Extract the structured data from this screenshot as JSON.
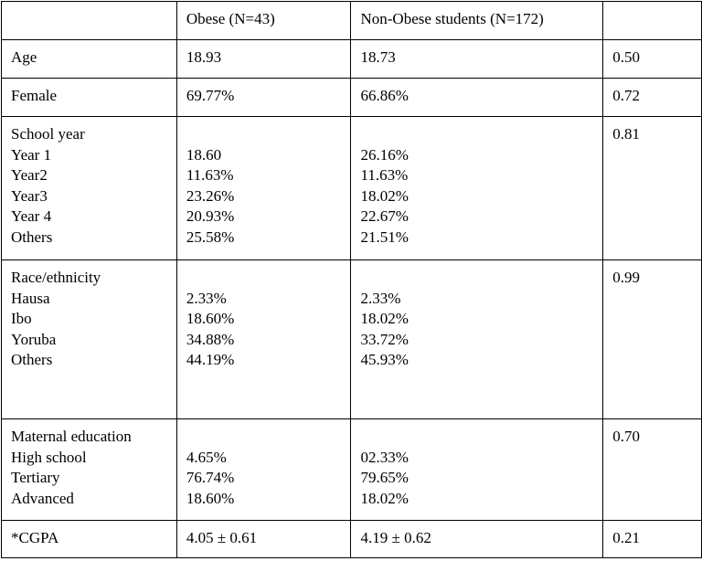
{
  "table": {
    "header": {
      "col1": "",
      "col2": "Obese (N=43)",
      "col3": "Non-Obese students (N=172)",
      "col4": ""
    },
    "age": {
      "label": "Age",
      "obese": "18.93",
      "non_obese": "18.73",
      "p": "0.50"
    },
    "female": {
      "label": "Female",
      "obese": "69.77%",
      "non_obese": "66.86%",
      "p": "0.72"
    },
    "school_year": {
      "label": "School year",
      "p": "0.81",
      "rows": [
        {
          "label": "Year 1",
          "obese": "18.60",
          "non_obese": "26.16%"
        },
        {
          "label": "Year2",
          "obese": "11.63%",
          "non_obese": "11.63%"
        },
        {
          "label": "Year3",
          "obese": "23.26%",
          "non_obese": "18.02%"
        },
        {
          "label": "Year 4",
          "obese": "20.93%",
          "non_obese": "22.67%"
        },
        {
          "label": "Others",
          "obese": "25.58%",
          "non_obese": "21.51%"
        }
      ]
    },
    "race": {
      "label": "Race/ethnicity",
      "p": "0.99",
      "rows": [
        {
          "label": "Hausa",
          "obese": "2.33%",
          "non_obese": "2.33%"
        },
        {
          "label": "Ibo",
          "obese": "18.60%",
          "non_obese": "18.02%"
        },
        {
          "label": "Yoruba",
          "obese": "34.88%",
          "non_obese": "33.72%"
        },
        {
          "label": "Others",
          "obese": "44.19%",
          "non_obese": "45.93%"
        }
      ]
    },
    "maternal": {
      "label": "Maternal education",
      "p": "0.70",
      "rows": [
        {
          "label": "High school",
          "obese": "4.65%",
          "non_obese": "02.33%"
        },
        {
          "label": "Tertiary",
          "obese": "76.74%",
          "non_obese": "79.65%"
        },
        {
          "label": "Advanced",
          "obese": "18.60%",
          "non_obese": "18.02%"
        }
      ]
    },
    "cgpa": {
      "label": "*CGPA",
      "obese": "4.05 ± 0.61",
      "non_obese": "4.19 ± 0.62",
      "p": "0.21"
    }
  }
}
